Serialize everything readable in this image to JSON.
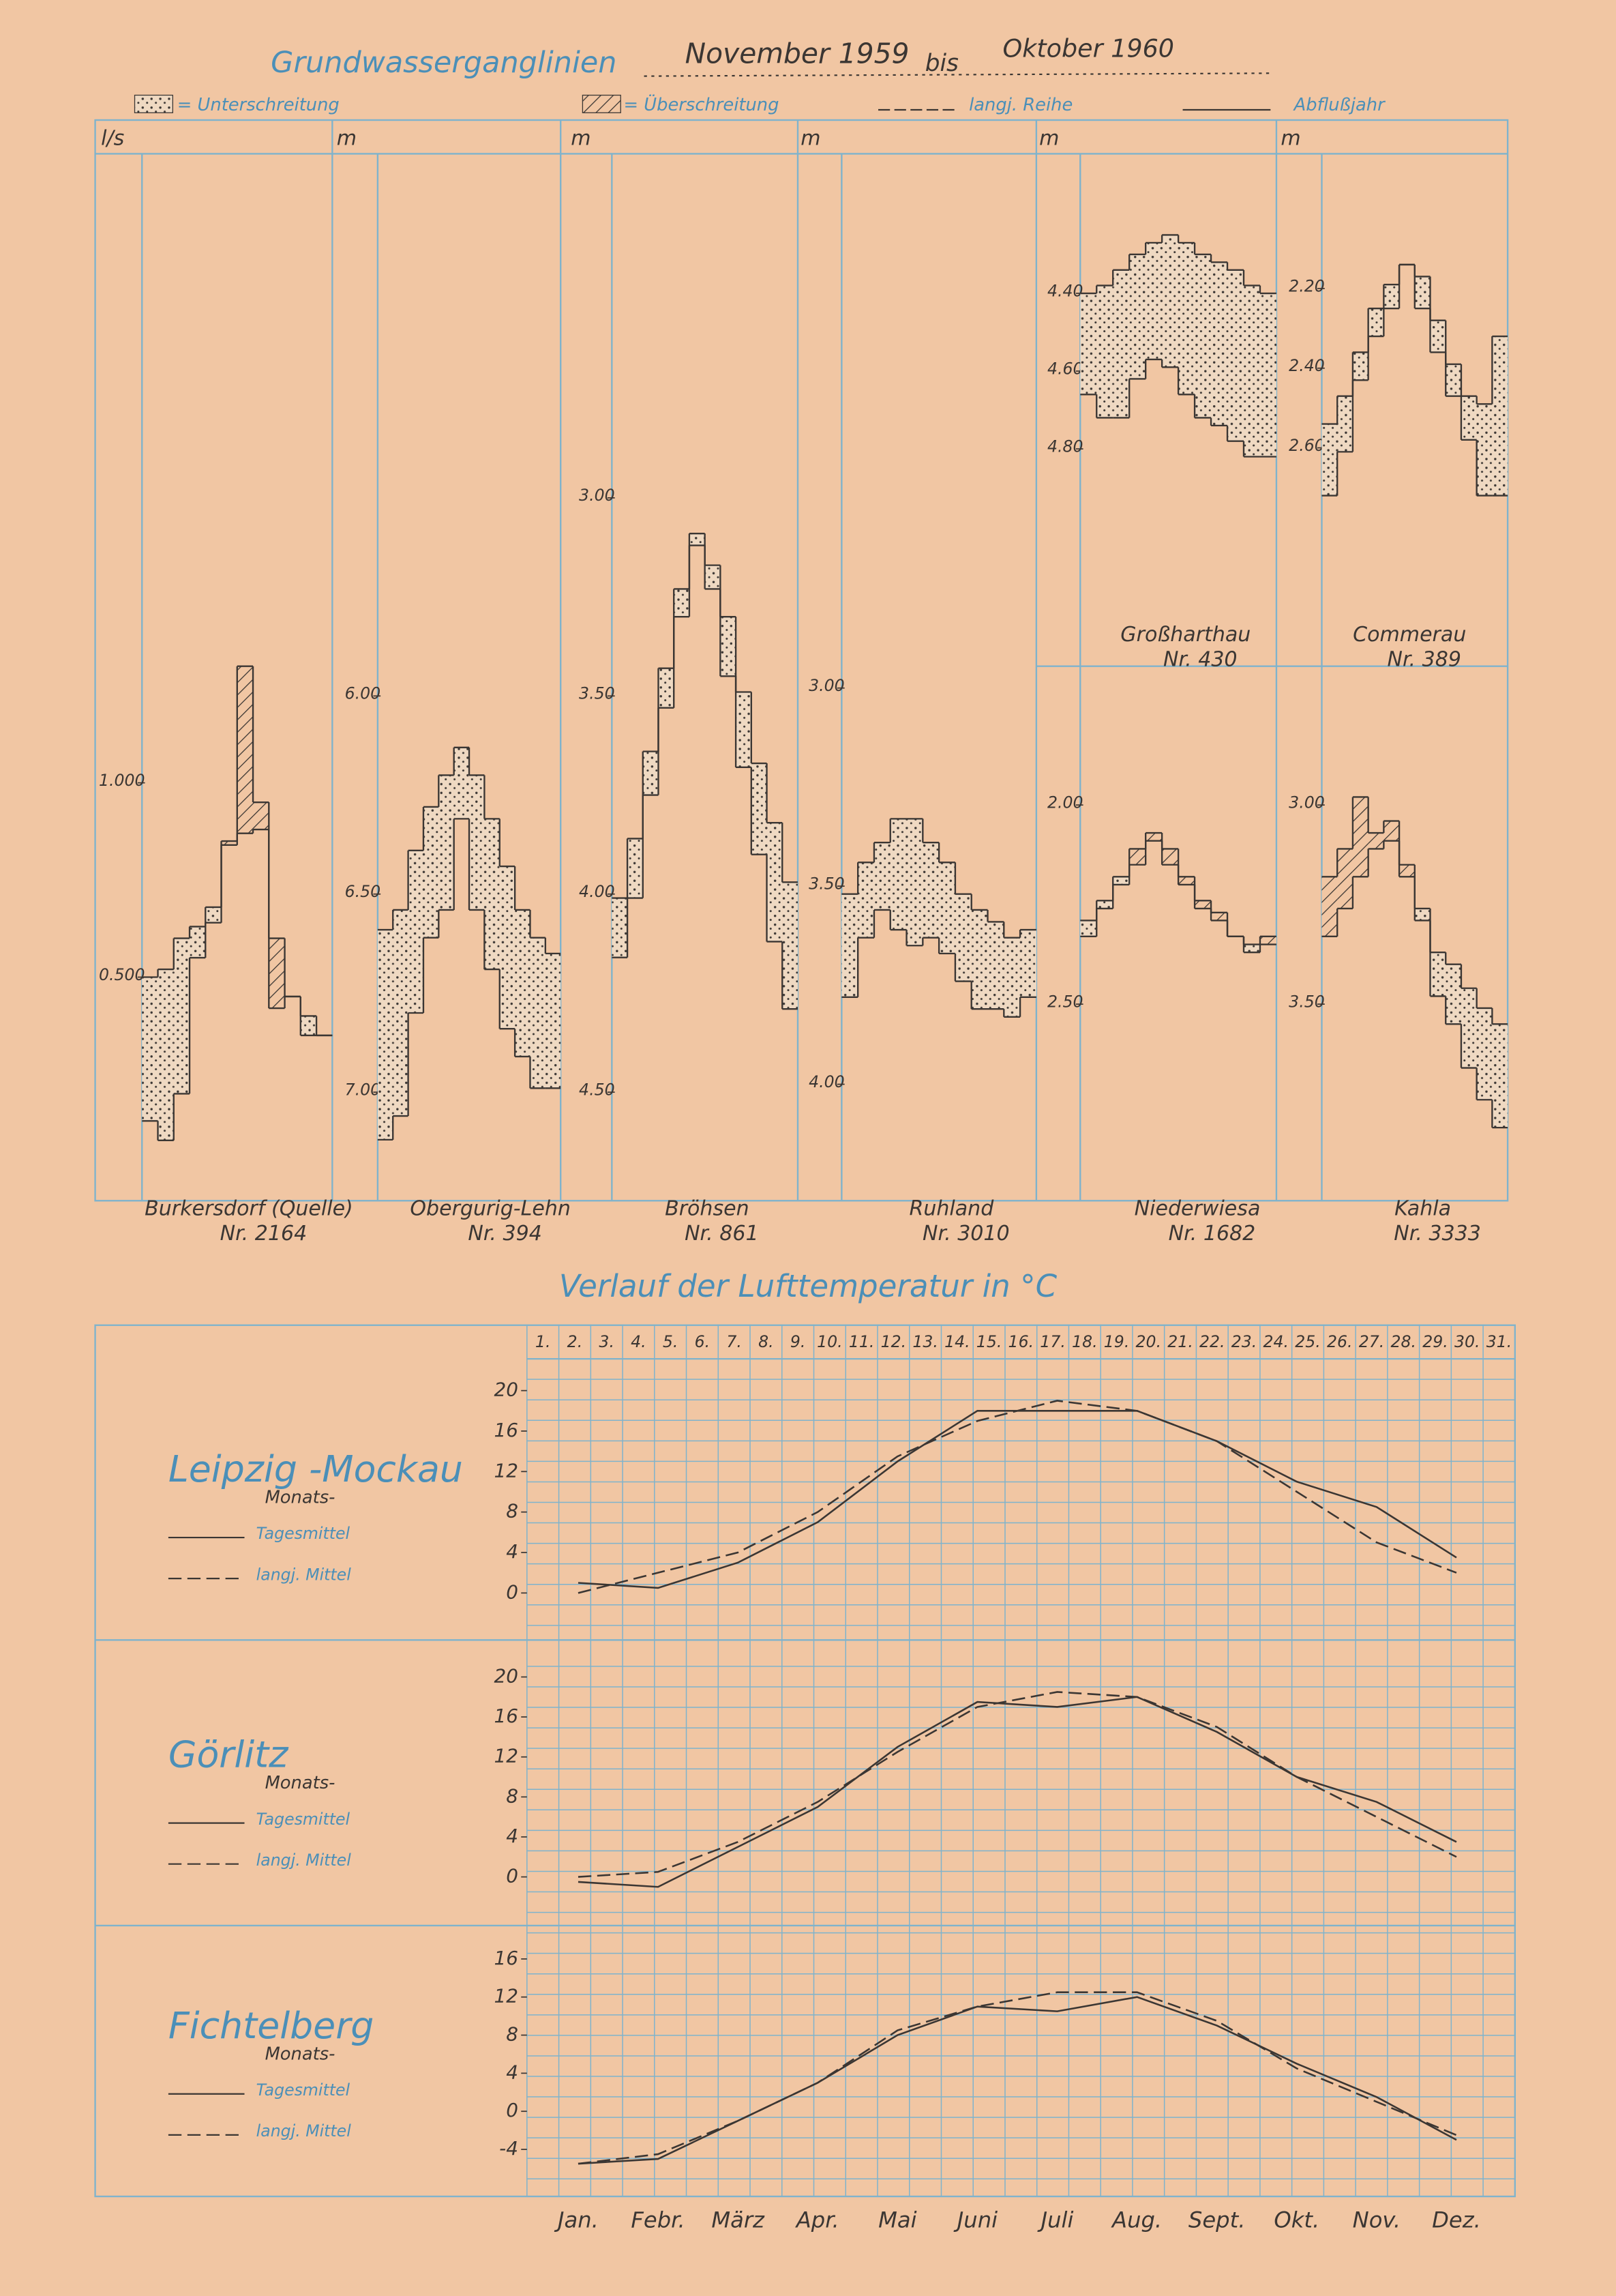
{
  "page": {
    "title": "Grundwasserganglinien",
    "period_start": "November 1959",
    "period_join": "bis",
    "period_end": "Oktober 1960",
    "legend": {
      "below": "= Unterschreitung",
      "above": "= Überschreitung",
      "reference": "langj. Reihe",
      "observed": "Abflußjahr"
    },
    "temp_title": "Verlauf der Lufttemperatur in °C"
  },
  "chart_data": [
    {
      "type": "step",
      "title": "Burkersdorf (Quelle)",
      "subtitle": "Nr. 2164",
      "unit": "l/s",
      "ylim": [
        0,
        2.6
      ],
      "yticks": [
        {
          "value": 0.5,
          "label": "0.500"
        },
        {
          "value": 1,
          "label": "1.000"
        }
      ],
      "series": [
        {
          "color": "#3b3633",
          "values": [
            0.5,
            0.52,
            0.6,
            0.63,
            0.68,
            0.84,
            0.87,
            0.88,
            0.42,
            0.45,
            0.4,
            0.35
          ]
        },
        {
          "color": "#3b3633",
          "values": [
            0.13,
            0.08,
            0.2,
            0.55,
            0.64,
            0.85,
            1.3,
            0.95,
            0.6,
            0.45,
            0.35,
            0.35
          ]
        }
      ]
    },
    {
      "type": "step",
      "title": "Obergurig-Lehn",
      "subtitle": "Nr. 394",
      "unit": "m",
      "ylim": [
        7.2,
        4.65
      ],
      "yticks": [
        {
          "value": 6,
          "label": "6.00"
        },
        {
          "value": 6.5,
          "label": "6.50"
        },
        {
          "value": 7,
          "label": "7.00"
        }
      ],
      "series": [
        {
          "color": "#3b3633",
          "values": [
            6.59,
            6.54,
            6.39,
            6.28,
            6.2,
            6.13,
            6.2,
            6.31,
            6.43,
            6.54,
            6.61,
            6.65
          ]
        },
        {
          "color": "#3b3633",
          "values": [
            7.12,
            7.06,
            6.8,
            6.61,
            6.54,
            6.31,
            6.54,
            6.69,
            6.84,
            6.91,
            6.99,
            6.99
          ]
        }
      ]
    },
    {
      "type": "step",
      "title": "Bröhsen",
      "subtitle": "Nr. 861",
      "unit": "m",
      "ylim": [
        4.7,
        2.15
      ],
      "yticks": [
        {
          "value": 3,
          "label": "3.00"
        },
        {
          "value": 3.5,
          "label": "3.50"
        },
        {
          "value": 4,
          "label": "4.00"
        },
        {
          "value": 4.5,
          "label": "4.50"
        }
      ],
      "series": [
        {
          "color": "#3b3633",
          "values": [
            4.01,
            3.86,
            3.64,
            3.43,
            3.23,
            3.09,
            3.17,
            3.3,
            3.49,
            3.67,
            3.82,
            3.97
          ]
        },
        {
          "color": "#3b3633",
          "values": [
            4.16,
            4.01,
            3.75,
            3.53,
            3.3,
            3.12,
            3.23,
            3.45,
            3.68,
            3.9,
            4.12,
            4.29
          ]
        }
      ]
    },
    {
      "type": "step",
      "title": "Ruhland",
      "subtitle": "Nr. 3010",
      "unit": "m",
      "ylim": [
        4.22,
        1.67
      ],
      "yticks": [
        {
          "value": 3,
          "label": "3.00"
        },
        {
          "value": 3.5,
          "label": "3.50"
        },
        {
          "value": 4,
          "label": "4.00"
        }
      ],
      "series": [
        {
          "color": "#3b3633",
          "values": [
            3.52,
            3.44,
            3.39,
            3.33,
            3.33,
            3.39,
            3.44,
            3.52,
            3.56,
            3.59,
            3.63,
            3.61
          ]
        },
        {
          "color": "#3b3633",
          "values": [
            3.78,
            3.63,
            3.56,
            3.61,
            3.65,
            3.63,
            3.67,
            3.74,
            3.81,
            3.81,
            3.83,
            3.78
          ]
        }
      ]
    },
    {
      "type": "step",
      "title": "Großharthau",
      "subtitle": "Nr. 430",
      "unit": "m",
      "ylim": [
        5.34,
        4.06
      ],
      "yticks": [
        {
          "value": 4.4,
          "label": "4.40"
        },
        {
          "value": 4.6,
          "label": "4.60"
        },
        {
          "value": 4.8,
          "label": "4.80"
        }
      ],
      "series": [
        {
          "color": "#3b3633",
          "values": [
            4.4,
            4.38,
            4.34,
            4.3,
            4.27,
            4.25,
            4.27,
            4.3,
            4.32,
            4.34,
            4.38,
            4.4
          ]
        },
        {
          "color": "#3b3633",
          "values": [
            4.66,
            4.72,
            4.72,
            4.62,
            4.57,
            4.59,
            4.66,
            4.72,
            4.74,
            4.78,
            4.82,
            4.82
          ]
        }
      ]
    },
    {
      "type": "step",
      "title": "Commerau",
      "subtitle": "Nr. 389",
      "unit": "m",
      "ylim": [
        3.13,
        1.88
      ],
      "yticks": [
        {
          "value": 2.2,
          "label": "2.20"
        },
        {
          "value": 2.4,
          "label": "2.40"
        },
        {
          "value": 2.6,
          "label": "2.60"
        }
      ],
      "series": [
        {
          "color": "#3b3633",
          "values": [
            2.54,
            2.47,
            2.36,
            2.25,
            2.19,
            2.14,
            2.17,
            2.28,
            2.39,
            2.47,
            2.49,
            2.32
          ]
        },
        {
          "color": "#3b3633",
          "values": [
            2.72,
            2.61,
            2.43,
            2.32,
            2.25,
            2.14,
            2.25,
            2.36,
            2.47,
            2.58,
            2.72,
            2.72
          ]
        }
      ]
    },
    {
      "type": "step",
      "title": "Niederwiesa",
      "subtitle": "Nr. 1682",
      "ylim": [
        2.92,
        1.67
      ],
      "yticks": [
        {
          "value": 2,
          "label": "2.00"
        },
        {
          "value": 2.5,
          "label": "2.50"
        }
      ],
      "series": [
        {
          "color": "#3b3633",
          "values": [
            2.29,
            2.24,
            2.18,
            2.15,
            2.09,
            2.15,
            2.2,
            2.26,
            2.29,
            2.33,
            2.35,
            2.35
          ]
        },
        {
          "color": "#3b3633",
          "values": [
            2.33,
            2.26,
            2.2,
            2.11,
            2.07,
            2.11,
            2.18,
            2.24,
            2.27,
            2.33,
            2.37,
            2.33
          ]
        }
      ]
    },
    {
      "type": "step",
      "title": "Kahla",
      "subtitle": "Nr. 3333",
      "ylim": [
        3.92,
        2.67
      ],
      "yticks": [
        {
          "value": 3,
          "label": "3.00"
        },
        {
          "value": 3.5,
          "label": "3.50"
        }
      ],
      "series": [
        {
          "color": "#3b3633",
          "values": [
            3.33,
            3.26,
            3.18,
            3.11,
            3.09,
            3.18,
            3.26,
            3.37,
            3.4,
            3.46,
            3.51,
            3.55
          ]
        },
        {
          "color": "#3b3633",
          "values": [
            3.18,
            3.11,
            2.98,
            3.07,
            3.04,
            3.15,
            3.29,
            3.48,
            3.55,
            3.66,
            3.74,
            3.81
          ]
        }
      ]
    },
    {
      "type": "line",
      "title": "Leipzig -Mockau",
      "legend_head": "Monats-",
      "ylim": [
        -3.2,
        21.4
      ],
      "yticks": [
        0,
        4,
        8,
        12,
        16,
        20
      ],
      "day_labels": [
        "1.",
        "2.",
        "3.",
        "4.",
        "5.",
        "6.",
        "7.",
        "8.",
        "9.",
        "10.",
        "11.",
        "12.",
        "13.",
        "14.",
        "15.",
        "16.",
        "17.",
        "18.",
        "19.",
        "20.",
        "21.",
        "22.",
        "23.",
        "24.",
        "25.",
        "26.",
        "27.",
        "28.",
        "29.",
        "30.",
        "31."
      ],
      "series": [
        {
          "name": "Tagesmittel",
          "color": "#3b3633",
          "dash": false,
          "values": [
            1,
            0.5,
            3,
            7,
            13,
            18,
            18,
            18,
            15,
            11,
            8.5,
            3.5
          ]
        },
        {
          "name": "langj. Mittel",
          "color": "#3b3633",
          "dash": true,
          "values": [
            0,
            2,
            4,
            8,
            13.5,
            17,
            19,
            18,
            15,
            10,
            5,
            2
          ]
        }
      ]
    },
    {
      "type": "line",
      "title": "Görlitz",
      "legend_head": "Monats-",
      "ylim": [
        -3.4,
        21.5
      ],
      "yticks": [
        0,
        4,
        8,
        12,
        16,
        20
      ],
      "series": [
        {
          "name": "Tagesmittel",
          "color": "#3b3633",
          "dash": false,
          "values": [
            -0.5,
            -1,
            3,
            7,
            13,
            17.5,
            17,
            18,
            14.5,
            10,
            7.5,
            3.5
          ]
        },
        {
          "name": "langj. Mittel",
          "color": "#3b3633",
          "dash": true,
          "values": [
            0,
            0.5,
            3.5,
            7.5,
            12.5,
            17,
            18.5,
            18,
            15,
            10,
            6,
            2
          ]
        }
      ]
    },
    {
      "type": "line",
      "title": "Fichtelberg",
      "legend_head": "Monats-",
      "ylim": [
        -7.4,
        17.2
      ],
      "yticks": [
        -4,
        0,
        4,
        8,
        12,
        16
      ],
      "categories": [
        "Jan.",
        "Febr.",
        "März",
        "Apr.",
        "Mai",
        "Juni",
        "Juli",
        "Aug.",
        "Sept.",
        "Okt.",
        "Nov.",
        "Dez."
      ],
      "series": [
        {
          "name": "Tagesmittel",
          "color": "#3b3633",
          "dash": false,
          "values": [
            -5.5,
            -5,
            -1,
            3,
            8,
            11,
            10.5,
            12,
            9,
            5,
            1.5,
            -3
          ]
        },
        {
          "name": "langj. Mittel",
          "color": "#3b3633",
          "dash": true,
          "values": [
            -5.5,
            -4.5,
            -1,
            3,
            8.5,
            11,
            12.5,
            12.5,
            9.5,
            4.5,
            1,
            -2.5
          ]
        }
      ]
    }
  ]
}
